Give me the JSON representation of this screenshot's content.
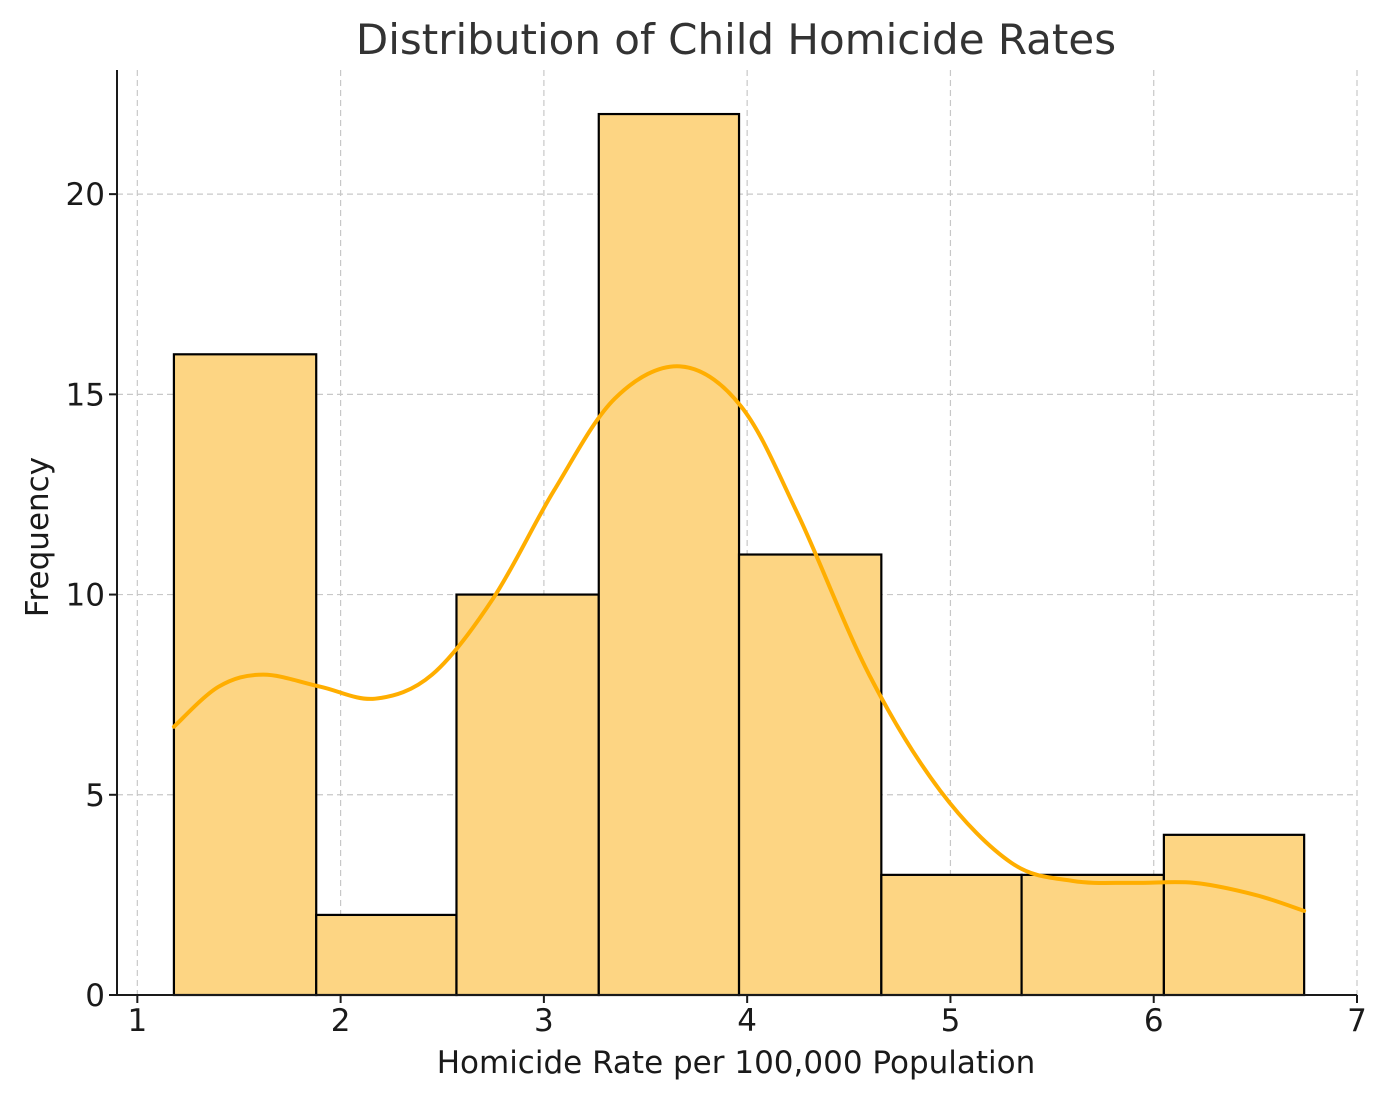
{
  "chart_data": {
    "type": "bar",
    "subtype": "histogram",
    "title": "Distribution of Child Homicide Rates",
    "xlabel": "Homicide Rate per 100,000 Population",
    "ylabel": "Frequency",
    "xlim": [
      0.9,
      7.0
    ],
    "ylim": [
      0,
      23.1
    ],
    "xticks": [
      1,
      2,
      3,
      4,
      5,
      6,
      7
    ],
    "yticks": [
      0,
      5,
      10,
      15,
      20
    ],
    "grid": true,
    "bins": [
      {
        "x0": 1.18,
        "x1": 1.88,
        "count": 16
      },
      {
        "x0": 1.88,
        "x1": 2.57,
        "count": 2
      },
      {
        "x0": 2.57,
        "x1": 3.27,
        "count": 10
      },
      {
        "x0": 3.27,
        "x1": 3.96,
        "count": 22
      },
      {
        "x0": 3.96,
        "x1": 4.66,
        "count": 11
      },
      {
        "x0": 4.66,
        "x1": 5.35,
        "count": 3
      },
      {
        "x0": 5.35,
        "x1": 6.05,
        "count": 3
      },
      {
        "x0": 6.05,
        "x1": 6.74,
        "count": 4
      }
    ],
    "kde": {
      "x": [
        1.18,
        1.4,
        1.62,
        1.9,
        2.17,
        2.45,
        2.75,
        3.05,
        3.35,
        3.67,
        3.97,
        4.25,
        4.6,
        4.95,
        5.3,
        5.6,
        5.9,
        6.2,
        6.5,
        6.74
      ],
      "y": [
        6.7,
        7.7,
        8.0,
        7.7,
        7.4,
        8.0,
        9.9,
        12.6,
        14.9,
        15.7,
        14.7,
        12.0,
        8.0,
        5.1,
        3.3,
        2.85,
        2.8,
        2.8,
        2.5,
        2.1
      ]
    },
    "colors": {
      "bar_fill": "#fdd583",
      "bar_edge": "#000000",
      "kde_line": "#ffae00"
    }
  }
}
